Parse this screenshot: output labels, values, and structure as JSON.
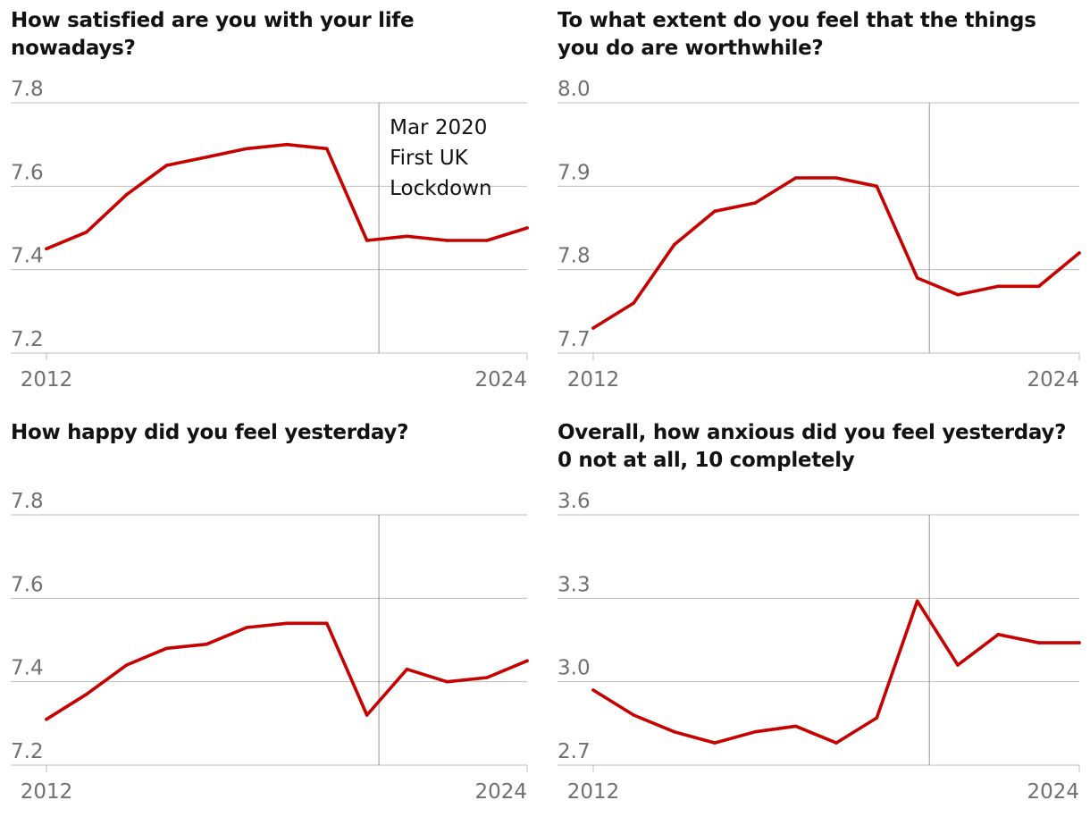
{
  "colors": {
    "line": "#c70000",
    "grid": "#bdbdbd",
    "tick_text": "#707070",
    "marker": "#a8a8a8"
  },
  "chart_data": [
    {
      "type": "line",
      "title": "How satisfied are you with your life nowadays?",
      "years": [
        2012,
        2013,
        2014,
        2015,
        2016,
        2017,
        2018,
        2019,
        2020,
        2021,
        2022,
        2023,
        2024
      ],
      "values": [
        7.45,
        7.49,
        7.58,
        7.65,
        7.67,
        7.69,
        7.7,
        7.69,
        7.47,
        7.48,
        7.47,
        7.47,
        7.5
      ],
      "yticks": [
        "7.8",
        "7.6",
        "7.4",
        "7.2"
      ],
      "ylim": [
        7.2,
        7.8
      ],
      "xtick_labels": [
        "2012",
        "2024"
      ],
      "xlim": [
        2012,
        2024
      ],
      "marker_x": 2020.3,
      "annotation": [
        "Mar 2020",
        "First UK",
        "Lockdown"
      ]
    },
    {
      "type": "line",
      "title": "To what extent do you feel that the things you do are worthwhile?",
      "years": [
        2012,
        2013,
        2014,
        2015,
        2016,
        2017,
        2018,
        2019,
        2020,
        2021,
        2022,
        2023,
        2024
      ],
      "values": [
        7.73,
        7.76,
        7.83,
        7.87,
        7.88,
        7.91,
        7.91,
        7.9,
        7.79,
        7.77,
        7.78,
        7.78,
        7.82
      ],
      "yticks": [
        "8.0",
        "7.9",
        "7.8",
        "7.7"
      ],
      "ylim": [
        7.7,
        8.0
      ],
      "xtick_labels": [
        "2012",
        "2024"
      ],
      "xlim": [
        2012,
        2024
      ],
      "marker_x": 2020.3
    },
    {
      "type": "line",
      "title": "How happy did you feel yesterday?",
      "years": [
        2012,
        2013,
        2014,
        2015,
        2016,
        2017,
        2018,
        2019,
        2020,
        2021,
        2022,
        2023,
        2024
      ],
      "values": [
        7.31,
        7.37,
        7.44,
        7.48,
        7.49,
        7.53,
        7.54,
        7.54,
        7.32,
        7.43,
        7.4,
        7.41,
        7.45
      ],
      "yticks": [
        "7.8",
        "7.6",
        "7.4",
        "7.2"
      ],
      "ylim": [
        7.2,
        7.8
      ],
      "xtick_labels": [
        "2012",
        "2024"
      ],
      "xlim": [
        2012,
        2024
      ],
      "marker_x": 2020.3
    },
    {
      "type": "line",
      "title": "Overall, how anxious did you feel yesterday? 0 not at all, 10 completely",
      "years": [
        2012,
        2013,
        2014,
        2015,
        2016,
        2017,
        2018,
        2019,
        2020,
        2021,
        2022,
        2023,
        2024
      ],
      "values": [
        2.97,
        2.88,
        2.82,
        2.78,
        2.82,
        2.84,
        2.78,
        2.87,
        3.29,
        3.06,
        3.17,
        3.14,
        3.14
      ],
      "yticks": [
        "3.6",
        "3.3",
        "3.0",
        "2.7"
      ],
      "ylim": [
        2.7,
        3.6
      ],
      "xtick_labels": [
        "2012",
        "2024"
      ],
      "xlim": [
        2012,
        2024
      ],
      "marker_x": 2020.3
    }
  ]
}
